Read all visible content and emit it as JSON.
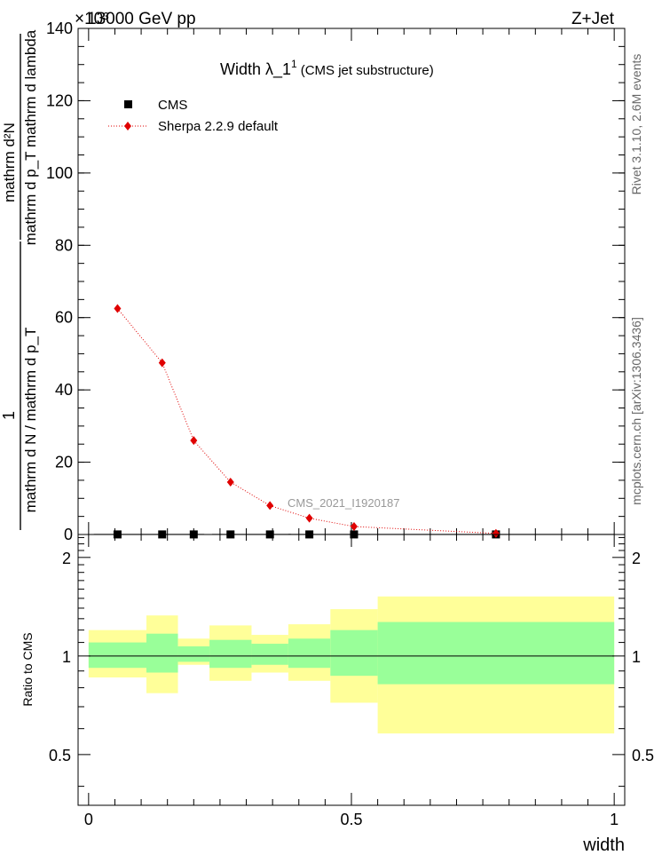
{
  "header": {
    "exponent_label": "×10³",
    "energy_label": "13000 GeV pp",
    "process_label": "Z+Jet"
  },
  "side_labels": {
    "rivet": "Rivet 3.1.10,  2.6M events",
    "mcplots": "mcplots.cern.ch [arXiv:1306.3436]"
  },
  "chart_data": [
    {
      "type": "scatter",
      "title_main": "Width λ_1",
      "title_sup": "1",
      "title_sub": "(CMS jet substructure)",
      "analysis_label": "CMS_2021_I1920187",
      "ylabel_numerator": "mathrm d²N",
      "ylabel_denominator": "mathrm d p_T mathrm d lambda",
      "ylabel_left_numerator": "1",
      "ylabel_left_denominator": "mathrm d N / mathrm d p_T",
      "xlim": [
        -0.02,
        1.02
      ],
      "ylim": [
        0,
        140
      ],
      "y_tick_values": [
        0,
        20,
        40,
        60,
        80,
        100,
        120,
        140
      ],
      "y_tick_labels": [
        "0",
        "20",
        "40",
        "60",
        "80",
        "100",
        "120",
        "140"
      ],
      "legend_position": "top-left",
      "series": [
        {
          "name": "CMS",
          "marker": "square",
          "color": "#000000",
          "x": [
            0.055,
            0.14,
            0.2,
            0.27,
            0.345,
            0.42,
            0.505,
            0.775
          ],
          "y": [
            0.02,
            0.02,
            0.02,
            0.02,
            0.02,
            0.02,
            0.02,
            0.02
          ],
          "xerr": [
            0.045,
            0.04,
            0.02,
            0.035,
            0.04,
            0.04,
            0.045,
            0.225
          ]
        },
        {
          "name": "Sherpa 2.2.9 default",
          "marker": "diamond",
          "color": "#e00000",
          "line_style": "dotted",
          "x": [
            0.055,
            0.14,
            0.2,
            0.27,
            0.345,
            0.42,
            0.505,
            0.775
          ],
          "y": [
            62.5,
            47.5,
            26,
            14.5,
            8,
            4.5,
            2.2,
            0.3
          ]
        }
      ]
    },
    {
      "type": "area",
      "ylabel": "Ratio to CMS",
      "xlabel": "width",
      "xlim": [
        -0.02,
        1.02
      ],
      "ylim": [
        0.35,
        2.35
      ],
      "log_scale_y": true,
      "y_tick_values": [
        0.5,
        1,
        2
      ],
      "y_tick_labels": [
        "0.5",
        "1",
        "2"
      ],
      "x_tick_values": [
        0,
        0.5,
        1
      ],
      "x_tick_labels": [
        "0",
        "0.5",
        "1"
      ],
      "reference_line": 1,
      "bins": [
        {
          "x0": 0.0,
          "x1": 0.11,
          "outer": [
            0.86,
            1.2
          ],
          "inner": [
            0.92,
            1.1
          ]
        },
        {
          "x0": 0.11,
          "x1": 0.17,
          "outer": [
            0.77,
            1.33
          ],
          "inner": [
            0.89,
            1.17
          ]
        },
        {
          "x0": 0.17,
          "x1": 0.23,
          "outer": [
            0.94,
            1.13
          ],
          "inner": [
            0.96,
            1.07
          ]
        },
        {
          "x0": 0.23,
          "x1": 0.31,
          "outer": [
            0.84,
            1.24
          ],
          "inner": [
            0.92,
            1.12
          ]
        },
        {
          "x0": 0.31,
          "x1": 0.38,
          "outer": [
            0.89,
            1.16
          ],
          "inner": [
            0.94,
            1.09
          ]
        },
        {
          "x0": 0.38,
          "x1": 0.46,
          "outer": [
            0.84,
            1.25
          ],
          "inner": [
            0.92,
            1.13
          ]
        },
        {
          "x0": 0.46,
          "x1": 0.55,
          "outer": [
            0.72,
            1.39
          ],
          "inner": [
            0.87,
            1.2
          ]
        },
        {
          "x0": 0.55,
          "x1": 1.0,
          "outer": [
            0.58,
            1.52
          ],
          "inner": [
            0.82,
            1.27
          ]
        }
      ],
      "colors": {
        "outer": "#ffff99",
        "inner": "#99ff99"
      }
    }
  ]
}
